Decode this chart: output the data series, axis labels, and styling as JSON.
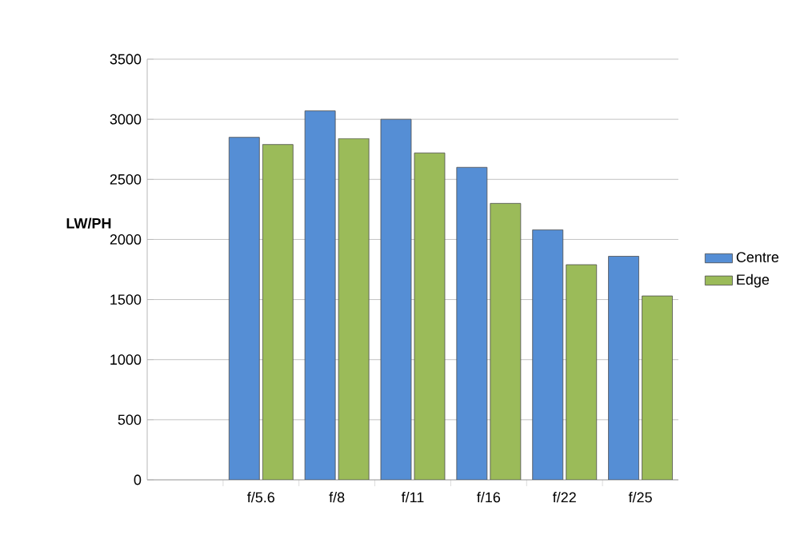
{
  "chart_data": {
    "type": "bar",
    "ylabel": "LW/PH",
    "categories": [
      null,
      "f/5.6",
      "f/8",
      "f/11",
      "f/16",
      "f/22",
      "f/25"
    ],
    "series": [
      {
        "name": "Centre",
        "color": "#558ed5",
        "values": [
          null,
          2850,
          3070,
          3000,
          2600,
          2080,
          1860
        ]
      },
      {
        "name": "Edge",
        "color": "#9bbb59",
        "values": [
          null,
          2790,
          2840,
          2720,
          2300,
          1790,
          1530
        ]
      }
    ],
    "ylim": [
      0,
      3500
    ],
    "yticks": [
      0,
      500,
      1000,
      1500,
      2000,
      2500,
      3000,
      3500
    ],
    "grid": "y",
    "legend": "right"
  }
}
